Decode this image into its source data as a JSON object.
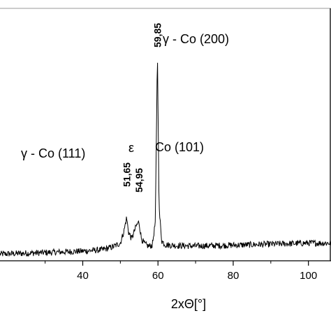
{
  "chart_data": {
    "type": "line",
    "title": "",
    "xlabel": "2xΘ[°]",
    "ylabel": "",
    "xlim": [
      18,
      106
    ],
    "ylim": [
      0,
      1000
    ],
    "x_ticks": [
      40,
      60,
      80,
      100
    ],
    "x_tick_labels": [
      "40",
      "60",
      "80",
      "100"
    ],
    "grid": false,
    "series": [
      {
        "baseline": [
          [
            18,
            48
          ],
          [
            30,
            55
          ],
          [
            40,
            62
          ],
          [
            45,
            68
          ],
          [
            48,
            82
          ],
          [
            50,
            100
          ],
          [
            51,
            160
          ],
          [
            51.65,
            220
          ],
          [
            52.2,
            150
          ],
          [
            53,
            120
          ],
          [
            54.2,
            180
          ],
          [
            54.95,
            200
          ],
          [
            55.6,
            120
          ],
          [
            56.5,
            95
          ],
          [
            57.5,
            85
          ],
          [
            58.5,
            90
          ],
          [
            59.3,
            200
          ],
          [
            59.85,
            1000
          ],
          [
            60.3,
            260
          ],
          [
            61,
            110
          ],
          [
            62,
            92
          ],
          [
            65,
            88
          ],
          [
            70,
            86
          ],
          [
            80,
            90
          ],
          [
            90,
            95
          ],
          [
            100,
            100
          ],
          [
            106,
            100
          ]
        ]
      }
    ],
    "peaks": [
      {
        "x": 51.65,
        "label": "51,65"
      },
      {
        "x": 54.95,
        "label": "54,95"
      },
      {
        "x": 59.85,
        "label": "59,85"
      }
    ],
    "annotations": [
      {
        "text": "γ - Co (200)"
      },
      {
        "text": "γ - Co (111)"
      },
      {
        "text": "ε"
      },
      {
        "text": "Co (101)"
      }
    ]
  }
}
